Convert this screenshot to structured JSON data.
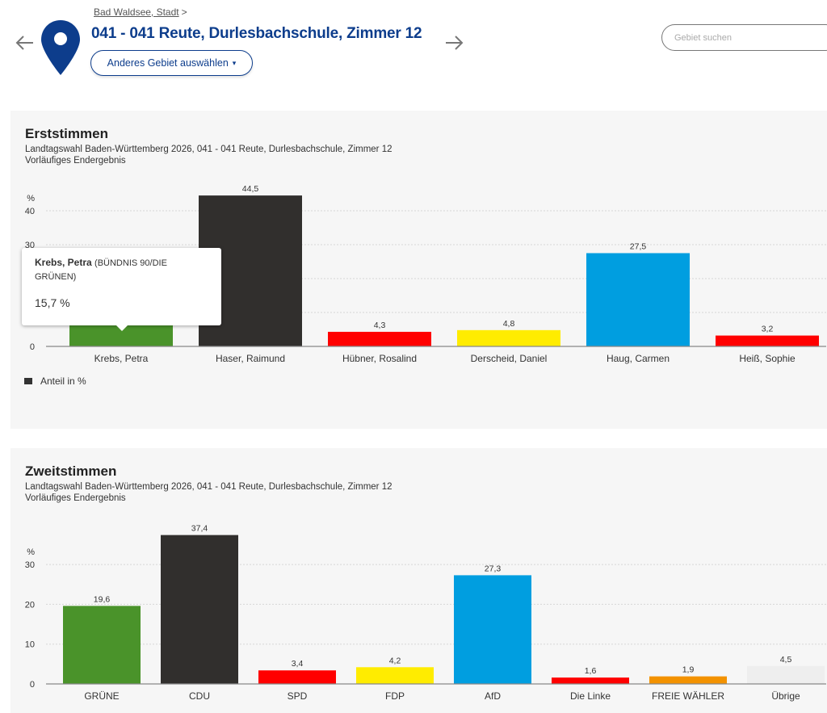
{
  "header": {
    "breadcrumb": {
      "link": "Bad Waldsee, Stadt",
      "separator": ">"
    },
    "title": "041 - 041 Reute, Durlesbachschule, Zimmer 12",
    "select_button": "Anderes Gebiet auswählen",
    "select_caret": "▾",
    "search_placeholder": "Gebiet suchen",
    "icons": {
      "prev": "arrow-left-icon",
      "next": "arrow-right-icon",
      "location": "map-pin-icon"
    },
    "accent_color": "#0d3d8c"
  },
  "legend": {
    "label": "Anteil in %"
  },
  "tooltip": {
    "name": "Krebs, Petra",
    "party": "(BÜNDNIS 90/DIE GRÜNEN)",
    "value": "15,7 %"
  },
  "chart_data": [
    {
      "type": "bar",
      "title": "Erststimmen",
      "subtitle": "Landtagswahl Baden-Württemberg 2026, 041 - 041 Reute, Durlesbachschule, Zimmer 12",
      "status": "Vorläufiges Endergebnis",
      "xlabel": "",
      "ylabel": "%",
      "ylim": [
        0,
        40
      ],
      "yticks": [
        0,
        10,
        20,
        30,
        40
      ],
      "yticks_labeled": [
        "0",
        "30",
        "40"
      ],
      "grid": true,
      "legend": "bottom-left",
      "categories": [
        "Krebs, Petra",
        "Haser, Raimund",
        "Hübner, Rosalind",
        "Derscheid, Daniel",
        "Haug, Carmen",
        "Heiß, Sophie"
      ],
      "values": [
        15.7,
        44.5,
        4.3,
        4.8,
        27.5,
        3.2
      ],
      "value_labels": [
        "15,7",
        "44,5",
        "4,3",
        "4,8",
        "27,5",
        "3,2"
      ],
      "colors": [
        "#4a932a",
        "#312f2d",
        "#ff0000",
        "#ffec00",
        "#009ee0",
        "#ff0000"
      ]
    },
    {
      "type": "bar",
      "title": "Zweitstimmen",
      "subtitle": "Landtagswahl Baden-Württemberg 2026, 041 - 041 Reute, Durlesbachschule, Zimmer 12",
      "status": "Vorläufiges Endergebnis",
      "xlabel": "",
      "ylabel": "%",
      "ylim": [
        0,
        30
      ],
      "yticks": [
        0,
        10,
        20,
        30
      ],
      "yticks_labeled": [
        "0",
        "10",
        "20",
        "30"
      ],
      "grid": true,
      "categories": [
        "GRÜNE",
        "CDU",
        "SPD",
        "FDP",
        "AfD",
        "Die Linke",
        "FREIE WÄHLER",
        "Übrige"
      ],
      "values": [
        19.6,
        37.4,
        3.4,
        4.2,
        27.3,
        1.6,
        1.9,
        4.5
      ],
      "value_labels": [
        "19,6",
        "37,4",
        "3,4",
        "4,2",
        "27,3",
        "1,6",
        "1,9",
        "4,5"
      ],
      "colors": [
        "#4a932a",
        "#312f2d",
        "#ff0000",
        "#ffec00",
        "#009ee0",
        "#ff0000",
        "#f39200",
        "#eeeeee"
      ]
    }
  ]
}
